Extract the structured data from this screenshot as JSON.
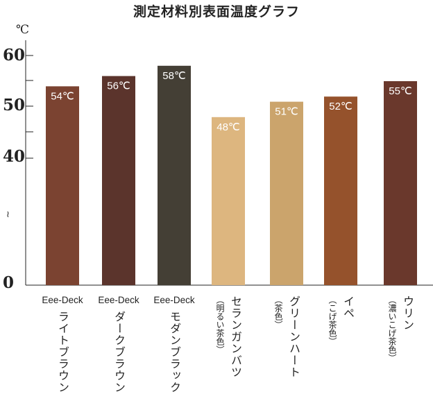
{
  "chart_data": {
    "type": "bar",
    "title": "測定材料別表面温度グラフ",
    "unit_label": "℃",
    "y_ticks": [
      "60",
      "50",
      "40",
      "0"
    ],
    "axis_break_symbol": "≀",
    "categories": [
      {
        "brand": "Eee-Deck",
        "name": "ライトブラウン",
        "sub": "",
        "value": 54,
        "label": "54℃",
        "color": "#7b4331",
        "label_color": "#ffffff"
      },
      {
        "brand": "Eee-Deck",
        "name": "ダークブラウン",
        "sub": "",
        "value": 56,
        "label": "56℃",
        "color": "#5b342c",
        "label_color": "#ffffff"
      },
      {
        "brand": "Eee-Deck",
        "name": "モダンブラック",
        "sub": "",
        "value": 58,
        "label": "58℃",
        "color": "#443f35",
        "label_color": "#ffffff"
      },
      {
        "brand": "",
        "name": "セランガンバツ",
        "sub": "（明るい茶色）",
        "value": 48,
        "label": "48℃",
        "color": "#ddb67f",
        "label_color": "#ffffff"
      },
      {
        "brand": "",
        "name": "グリーンハート",
        "sub": "（茶色）",
        "value": 51,
        "label": "51℃",
        "color": "#cba46c",
        "label_color": "#ffffff"
      },
      {
        "brand": "",
        "name": "イペ",
        "sub": "（こげ茶色）",
        "value": 52,
        "label": "52℃",
        "color": "#95522c",
        "label_color": "#ffffff"
      },
      {
        "brand": "",
        "name": "ウリン",
        "sub": "（濃いこげ茶色）",
        "value": 55,
        "label": "55℃",
        "color": "#6a382c",
        "label_color": "#ffffff"
      }
    ]
  }
}
